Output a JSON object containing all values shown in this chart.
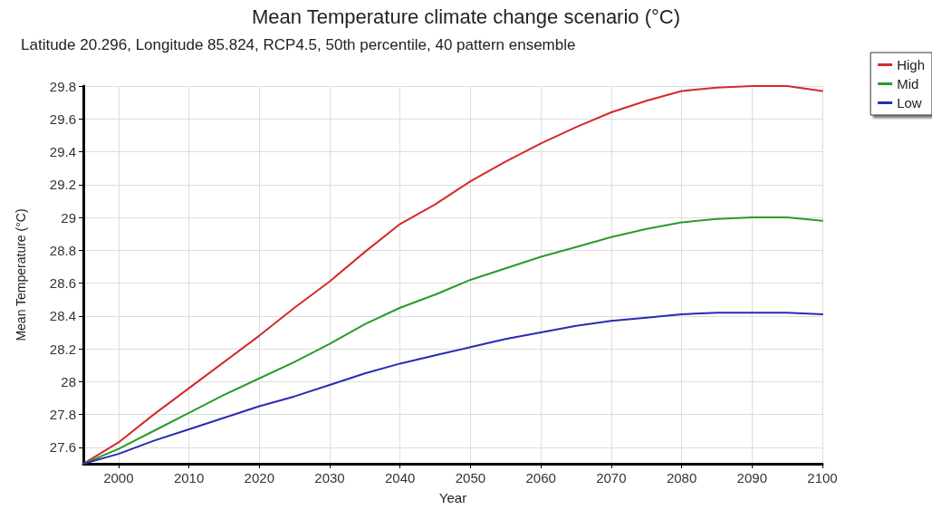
{
  "chart_data": {
    "type": "line",
    "title": "Mean Temperature climate change scenario (°C)",
    "subtitle": "Latitude 20.296, Longitude 85.824, RCP4.5, 50th percentile, 40 pattern ensemble",
    "xlabel": "Year",
    "ylabel": "Mean Temperature (°C)",
    "x": [
      1995,
      2000,
      2005,
      2010,
      2015,
      2020,
      2025,
      2030,
      2035,
      2040,
      2045,
      2050,
      2055,
      2060,
      2065,
      2070,
      2075,
      2080,
      2085,
      2090,
      2095,
      2100
    ],
    "series": [
      {
        "name": "High",
        "color": "#d42a2a",
        "values": [
          27.5,
          27.63,
          27.8,
          27.96,
          28.12,
          28.28,
          28.45,
          28.61,
          28.79,
          28.96,
          29.08,
          29.22,
          29.34,
          29.45,
          29.55,
          29.64,
          29.71,
          29.77,
          29.79,
          29.8,
          29.8,
          29.77
        ]
      },
      {
        "name": "Mid",
        "color": "#2a9a2a",
        "values": [
          27.5,
          27.59,
          27.7,
          27.81,
          27.92,
          28.02,
          28.12,
          28.23,
          28.35,
          28.45,
          28.53,
          28.62,
          28.69,
          28.76,
          28.82,
          28.88,
          28.93,
          28.97,
          28.99,
          29.0,
          29.0,
          28.98
        ]
      },
      {
        "name": "Low",
        "color": "#2a2ab4",
        "values": [
          27.5,
          27.56,
          27.64,
          27.71,
          27.78,
          27.85,
          27.91,
          27.98,
          28.05,
          28.11,
          28.16,
          28.21,
          28.26,
          28.3,
          28.34,
          28.37,
          28.39,
          28.41,
          28.42,
          28.42,
          28.42,
          28.41
        ]
      }
    ],
    "xlim": [
      1995,
      2100
    ],
    "xticks": [
      2000,
      2010,
      2020,
      2030,
      2040,
      2050,
      2060,
      2070,
      2080,
      2090,
      2100
    ],
    "ylim": [
      27.5,
      29.8
    ],
    "yticks": [
      27.6,
      27.8,
      28,
      28.2,
      28.4,
      28.6,
      28.8,
      29,
      29.2,
      29.4,
      29.6,
      29.8
    ],
    "grid": true,
    "legend": "top right",
    "marker": "none",
    "line_style": "solid"
  }
}
